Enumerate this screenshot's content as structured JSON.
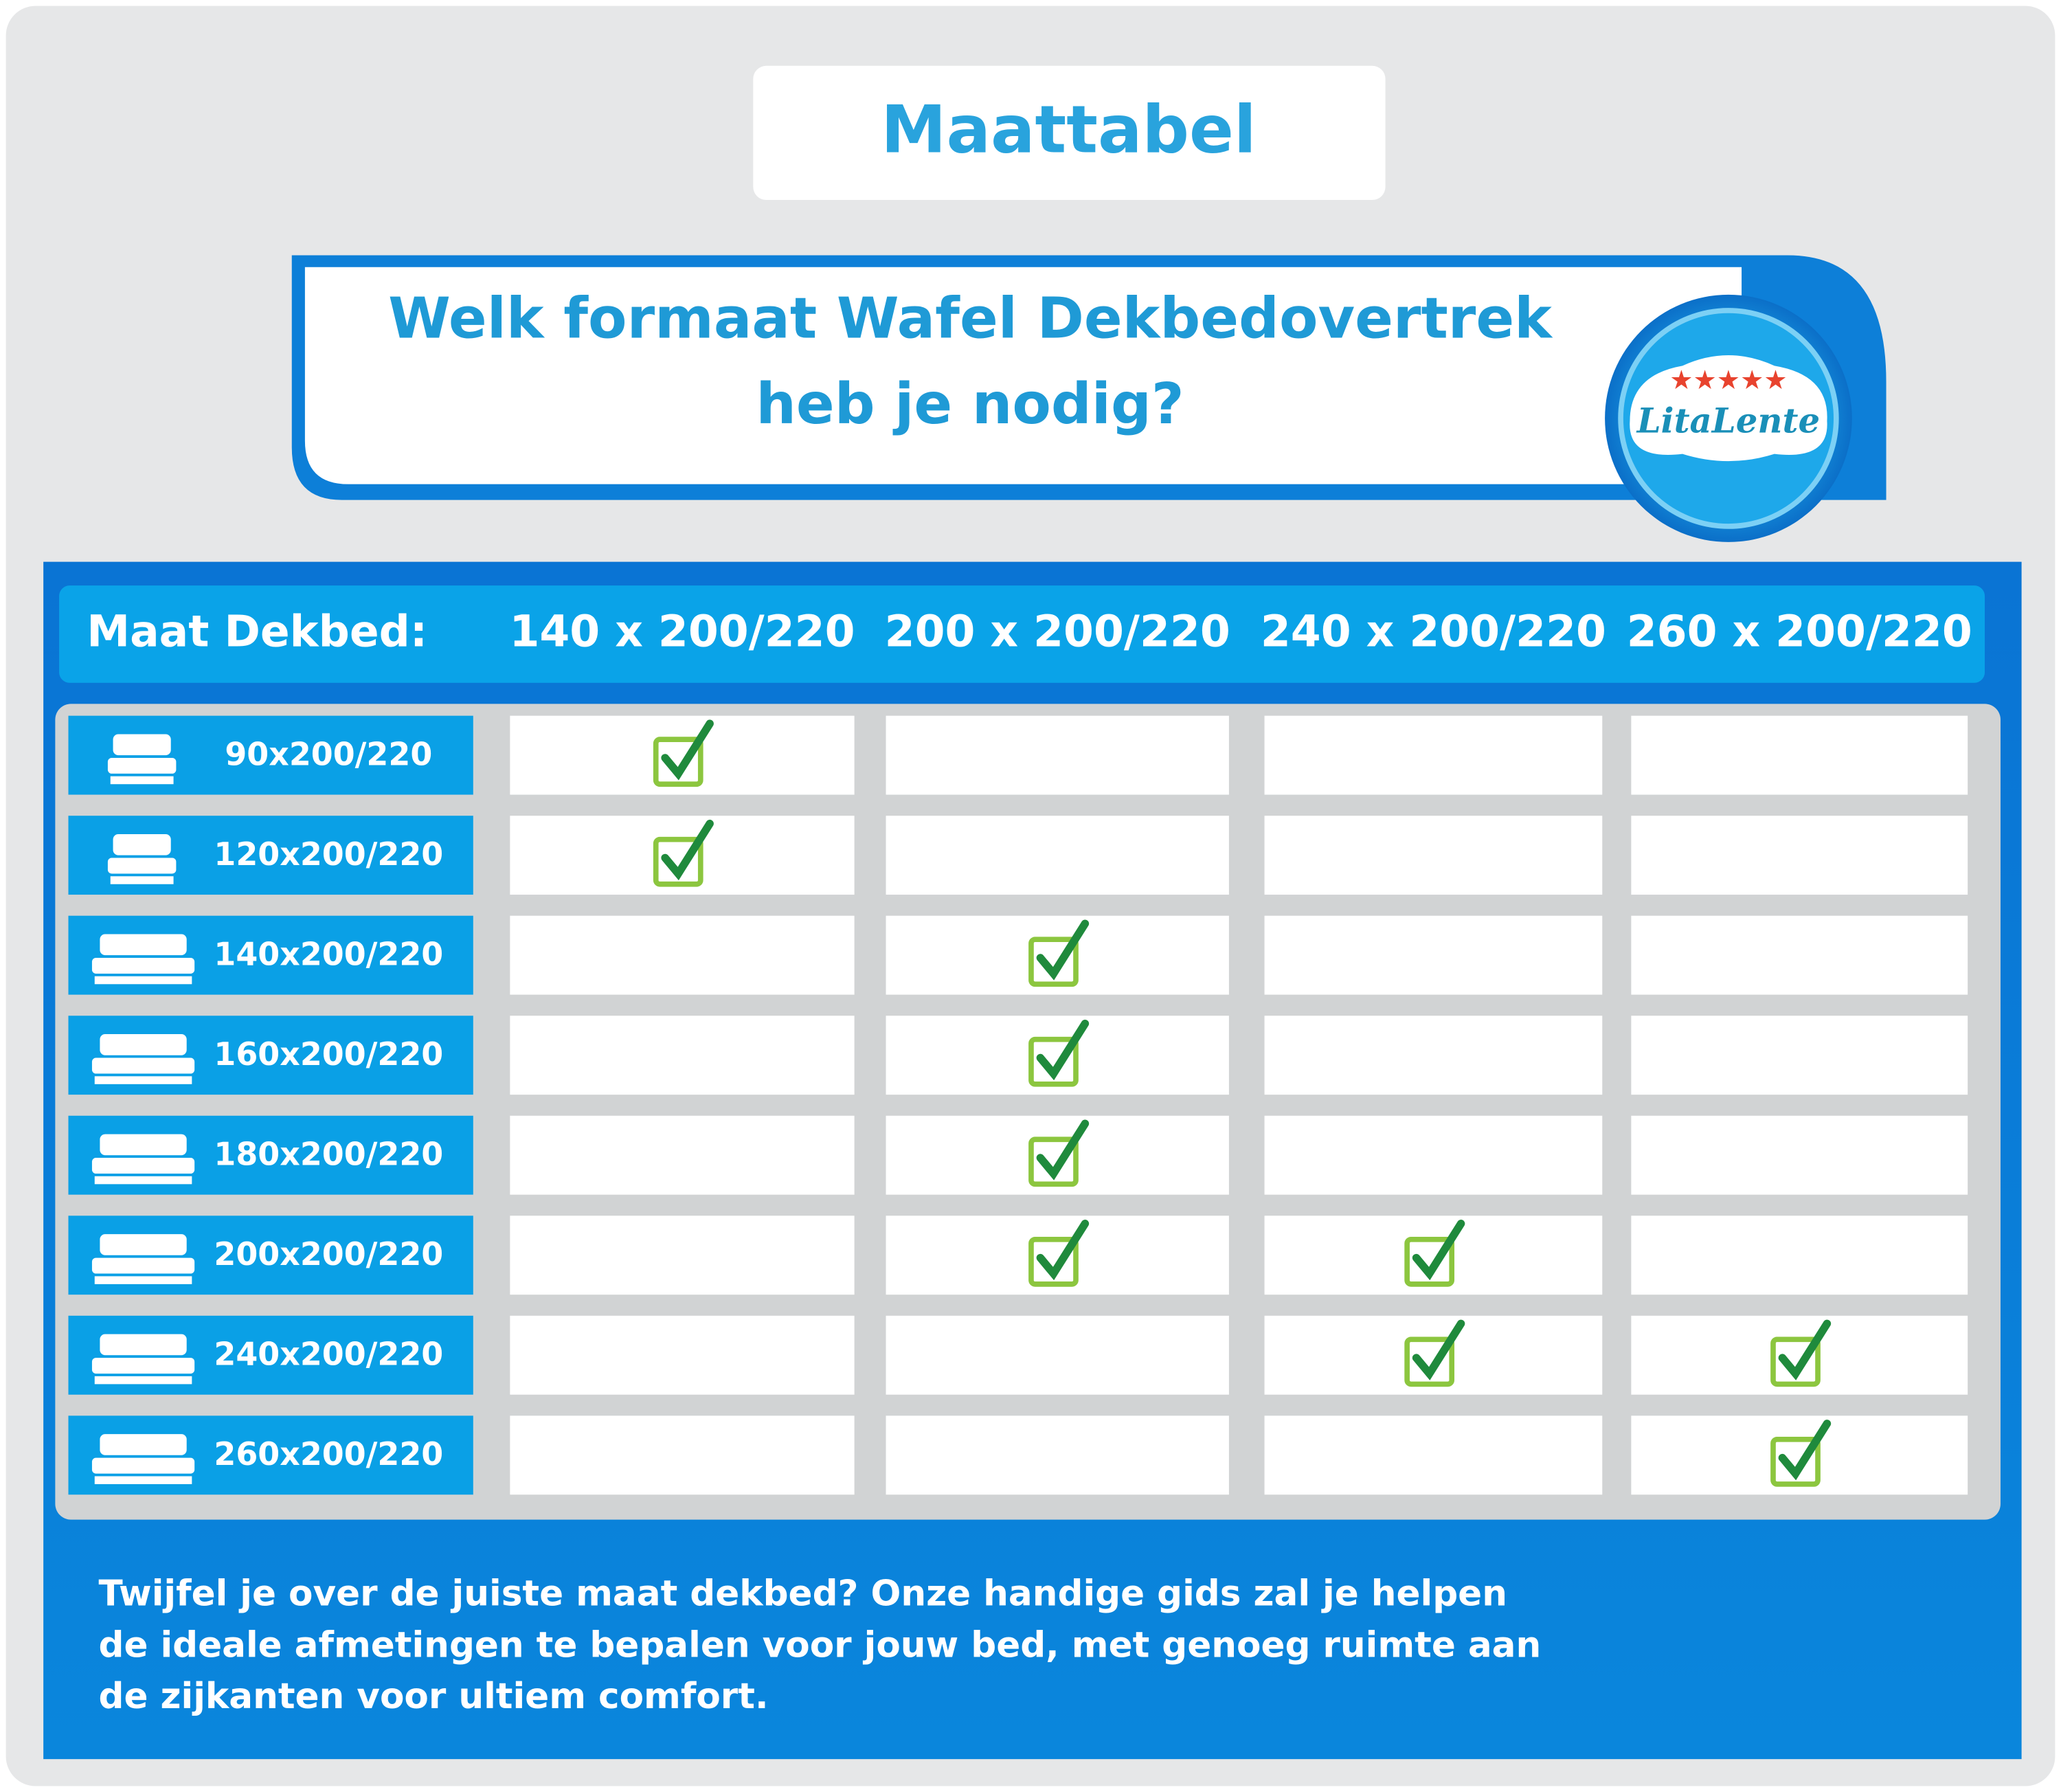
{
  "header": {
    "title": "Maattabel",
    "question": [
      "Welk formaat Wafel Dekbedovertrek",
      "heb je nodig?"
    ],
    "logo": "LitaLente"
  },
  "table": {
    "corner": "Maat Dekbed:",
    "columns": [
      "140 x 200/220",
      "200 x 200/220",
      "240 x 200/220",
      "260 x 200/220"
    ],
    "rows": [
      {
        "label": "90x200/220",
        "checks": [
          true,
          false,
          false,
          false
        ]
      },
      {
        "label": "120x200/220",
        "checks": [
          true,
          false,
          false,
          false
        ]
      },
      {
        "label": "140x200/220",
        "checks": [
          false,
          true,
          false,
          false
        ]
      },
      {
        "label": "160x200/220",
        "checks": [
          false,
          true,
          false,
          false
        ]
      },
      {
        "label": "180x200/220",
        "checks": [
          false,
          true,
          false,
          false
        ]
      },
      {
        "label": "200x200/220",
        "checks": [
          false,
          true,
          true,
          false
        ]
      },
      {
        "label": "240x200/220",
        "checks": [
          false,
          false,
          true,
          true
        ]
      },
      {
        "label": "260x200/220",
        "checks": [
          false,
          false,
          false,
          true
        ]
      }
    ]
  },
  "footer": {
    "lines": [
      "Twijfel je over de juiste maat dekbed? Onze handige gids zal je helpen",
      "de ideale afmetingen te bepalen voor jouw bed, met genoeg ruimte aan",
      "de zijkanten voor ultiem comfort."
    ]
  }
}
